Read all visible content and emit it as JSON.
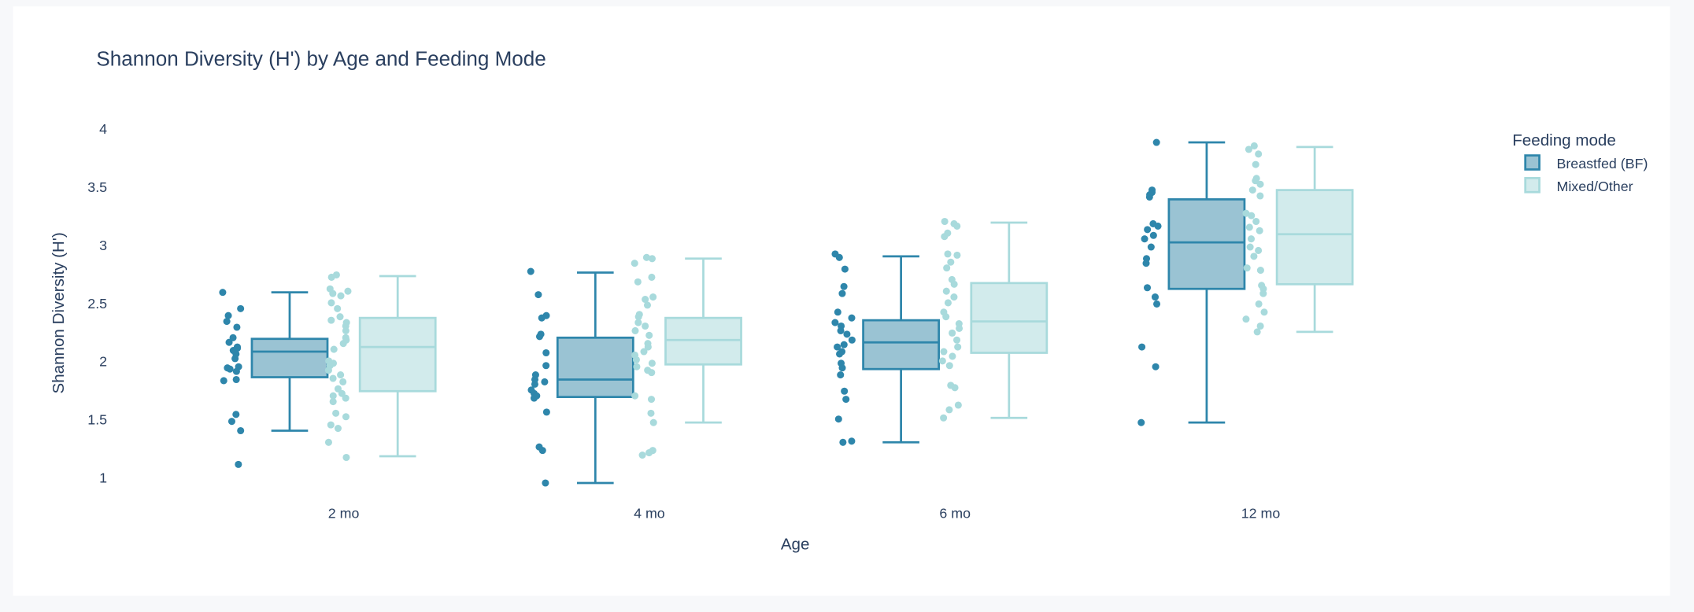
{
  "chart_data": {
    "type": "box",
    "title": "Shannon Diversity (H') by Age and Feeding Mode",
    "xlabel": "Age",
    "ylabel": "Shannon Diversity (H')",
    "categories": [
      "2 mo",
      "4 mo",
      "6 mo",
      "12 mo"
    ],
    "yticks": [
      "1",
      "1.5",
      "2",
      "2.5",
      "3",
      "3.5",
      "4"
    ],
    "ytick_values": [
      1,
      1.5,
      2,
      2.5,
      3,
      3.5,
      4
    ],
    "ylim": [
      0.78,
      4.15
    ],
    "grid": false,
    "legend": {
      "title": "Feeding mode",
      "placement": "top-right"
    },
    "series": [
      {
        "name": "Breastfed (BF)",
        "stroke": "#2e86ab",
        "fill": "#9ac3d3",
        "boxes": [
          {
            "min": 1.4,
            "q1": 1.86,
            "median": 2.08,
            "q3": 2.19,
            "max": 2.59
          },
          {
            "min": 0.95,
            "q1": 1.69,
            "median": 1.84,
            "q3": 2.2,
            "max": 2.76
          },
          {
            "min": 1.3,
            "q1": 1.93,
            "median": 2.16,
            "q3": 2.35,
            "max": 2.9
          },
          {
            "min": 1.47,
            "q1": 2.62,
            "median": 3.02,
            "q3": 3.39,
            "max": 3.88
          }
        ],
        "points": [
          [
            2.59,
            2.45,
            2.39,
            2.34,
            2.29,
            2.2,
            2.16,
            2.12,
            2.11,
            2.09,
            2.06,
            2.02,
            1.95,
            1.94,
            1.93,
            1.91,
            1.84,
            1.83,
            1.54,
            1.48,
            1.4,
            1.11
          ],
          [
            2.77,
            2.57,
            2.39,
            2.37,
            2.23,
            2.21,
            2.07,
            1.96,
            1.88,
            1.84,
            1.82,
            1.8,
            1.75,
            1.72,
            1.7,
            1.68,
            1.56,
            1.26,
            1.23,
            0.95
          ],
          [
            2.92,
            2.89,
            2.79,
            2.64,
            2.58,
            2.42,
            2.37,
            2.33,
            2.3,
            2.26,
            2.23,
            2.18,
            2.14,
            2.12,
            2.08,
            2.06,
            1.98,
            1.94,
            1.88,
            1.74,
            1.67,
            1.5,
            1.31,
            1.3
          ],
          [
            3.88,
            3.47,
            3.45,
            3.43,
            3.41,
            3.18,
            3.16,
            3.13,
            3.08,
            3.05,
            2.98,
            2.88,
            2.84,
            2.63,
            2.55,
            2.49,
            2.12,
            1.95,
            1.47
          ]
        ]
      },
      {
        "name": "Mixed/Other",
        "stroke": "#a8dadc",
        "fill": "#d2ebec",
        "boxes": [
          {
            "min": 1.18,
            "q1": 1.74,
            "median": 2.12,
            "q3": 2.37,
            "max": 2.73
          },
          {
            "min": 1.47,
            "q1": 1.97,
            "median": 2.18,
            "q3": 2.37,
            "max": 2.88
          },
          {
            "min": 1.51,
            "q1": 2.07,
            "median": 2.34,
            "q3": 2.67,
            "max": 3.19
          },
          {
            "min": 2.25,
            "q1": 2.66,
            "median": 3.09,
            "q3": 3.47,
            "max": 3.84
          }
        ],
        "points": [
          [
            2.74,
            2.72,
            2.62,
            2.6,
            2.58,
            2.56,
            2.5,
            2.45,
            2.38,
            2.35,
            2.33,
            2.3,
            2.26,
            2.2,
            2.18,
            2.15,
            2.1,
            2.0,
            1.98,
            1.96,
            1.92,
            1.88,
            1.85,
            1.82,
            1.76,
            1.72,
            1.7,
            1.68,
            1.65,
            1.55,
            1.52,
            1.45,
            1.42,
            1.3,
            1.17
          ],
          [
            2.89,
            2.88,
            2.84,
            2.72,
            2.68,
            2.55,
            2.53,
            2.48,
            2.4,
            2.38,
            2.33,
            2.3,
            2.26,
            2.22,
            2.15,
            2.12,
            2.08,
            2.05,
            2.01,
            1.98,
            1.95,
            1.92,
            1.9,
            1.7,
            1.67,
            1.55,
            1.47,
            1.23,
            1.21,
            1.19
          ],
          [
            3.2,
            3.18,
            3.16,
            3.1,
            3.07,
            2.92,
            2.91,
            2.85,
            2.8,
            2.7,
            2.66,
            2.6,
            2.55,
            2.5,
            2.42,
            2.38,
            2.32,
            2.28,
            2.24,
            2.18,
            2.12,
            2.08,
            2.04,
            2.0,
            1.96,
            1.79,
            1.77,
            1.62,
            1.58,
            1.51
          ],
          [
            3.85,
            3.82,
            3.78,
            3.69,
            3.57,
            3.55,
            3.52,
            3.47,
            3.42,
            3.27,
            3.25,
            3.2,
            3.15,
            3.12,
            3.05,
            2.98,
            2.95,
            2.9,
            2.8,
            2.78,
            2.65,
            2.62,
            2.58,
            2.49,
            2.42,
            2.36,
            2.3,
            2.25
          ]
        ]
      }
    ]
  }
}
